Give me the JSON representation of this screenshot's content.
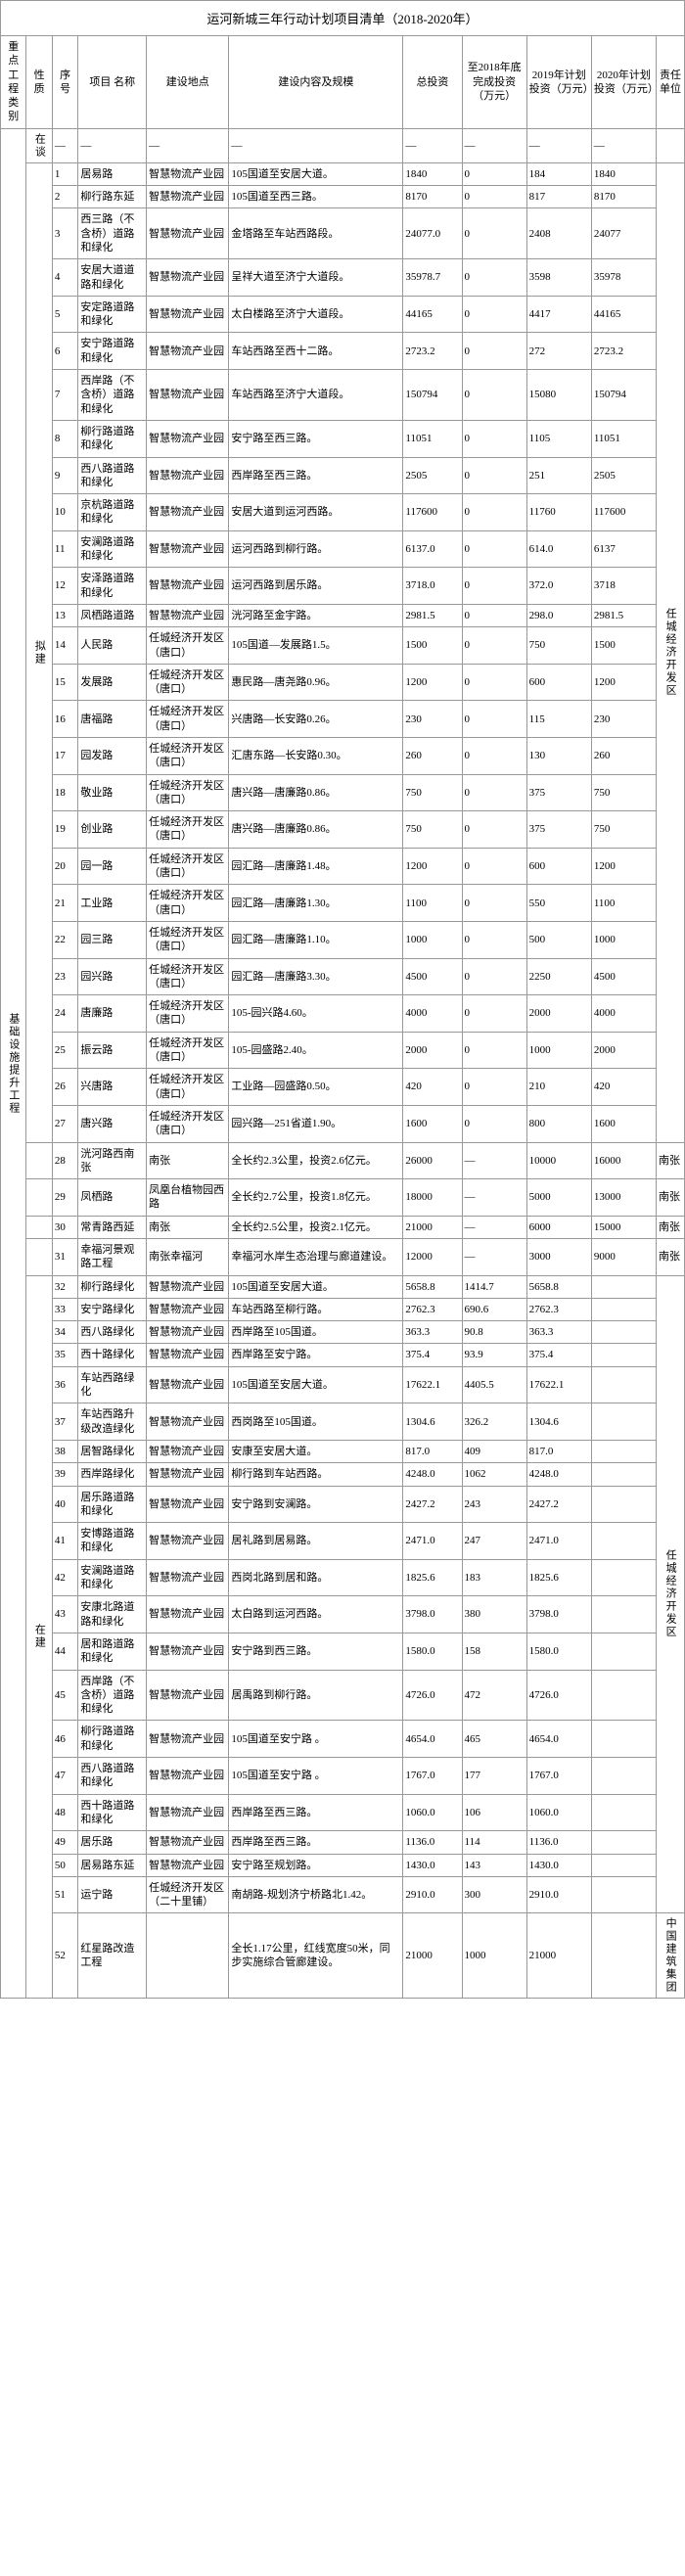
{
  "title": "运河新城三年行动计划项目清单（2018-2020年）",
  "headers": {
    "category": "重点工程类别",
    "nature": "性质",
    "seq": "序号",
    "name": "项目 名称",
    "location": "建设地点",
    "content": "建设内容及规模",
    "total_inv": "总投资",
    "inv_2018": "至2018年底完成投资（万元）",
    "inv_2019": "2019年计划投资（万元）",
    "inv_2020": "2020年计划投资（万元）",
    "unit": "责任单位"
  },
  "category_label": "基础设施提升工程",
  "nature_labels": {
    "zaitang": "在谈",
    "nijian": "拟建",
    "zaijian": "在建"
  },
  "unit_labels": {
    "rencheng": "任城经济开发区",
    "nanzhang": "南张",
    "zhongguo": "中国建筑集团"
  },
  "em": "—",
  "rows": [
    {
      "s": "1",
      "n": "居易路",
      "l": "智慧物流产业园",
      "c": "105国道至安居大道。",
      "t": "1840",
      "a": "0",
      "b": "184",
      "d": "1840"
    },
    {
      "s": "2",
      "n": "柳行路东延",
      "l": "智慧物流产业园",
      "c": "105国道至西三路。",
      "t": "8170",
      "a": "0",
      "b": "817",
      "d": "8170"
    },
    {
      "s": "3",
      "n": "西三路（不含桥）道路和绿化",
      "l": "智慧物流产业园",
      "c": "金塔路至车站西路段。",
      "t": "24077.0",
      "a": "0",
      "b": "2408",
      "d": "24077"
    },
    {
      "s": "4",
      "n": "安居大道道路和绿化",
      "l": "智慧物流产业园",
      "c": "呈祥大道至济宁大道段。",
      "t": "35978.7",
      "a": "0",
      "b": "3598",
      "d": "35978"
    },
    {
      "s": "5",
      "n": "安定路道路和绿化",
      "l": "智慧物流产业园",
      "c": "太白楼路至济宁大道段。",
      "t": "44165",
      "a": "0",
      "b": "4417",
      "d": "44165"
    },
    {
      "s": "6",
      "n": "安宁路道路和绿化",
      "l": "智慧物流产业园",
      "c": "车站西路至西十二路。",
      "t": "2723.2",
      "a": "0",
      "b": "272",
      "d": "2723.2"
    },
    {
      "s": "7",
      "n": "西岸路（不含桥）道路和绿化",
      "l": "智慧物流产业园",
      "c": "车站西路至济宁大道段。",
      "t": "150794",
      "a": "0",
      "b": "15080",
      "d": "150794"
    },
    {
      "s": "8",
      "n": "柳行路道路和绿化",
      "l": "智慧物流产业园",
      "c": "安宁路至西三路。",
      "t": "11051",
      "a": "0",
      "b": "1105",
      "d": "11051"
    },
    {
      "s": "9",
      "n": "西八路道路和绿化",
      "l": "智慧物流产业园",
      "c": "西岸路至西三路。",
      "t": "2505",
      "a": "0",
      "b": "251",
      "d": "2505"
    },
    {
      "s": "10",
      "n": "京杭路道路和绿化",
      "l": "智慧物流产业园",
      "c": "安居大道到运河西路。",
      "t": "117600",
      "a": "0",
      "b": "11760",
      "d": "117600"
    },
    {
      "s": "11",
      "n": "安澜路道路和绿化",
      "l": "智慧物流产业园",
      "c": "运河西路到柳行路。",
      "t": "6137.0",
      "a": "0",
      "b": "614.0",
      "d": "6137"
    },
    {
      "s": "12",
      "n": "安泽路道路和绿化",
      "l": "智慧物流产业园",
      "c": "运河西路到居乐路。",
      "t": "3718.0",
      "a": "0",
      "b": "372.0",
      "d": "3718"
    },
    {
      "s": "13",
      "n": "凤栖路道路",
      "l": "智慧物流产业园",
      "c": "洸河路至金宇路。",
      "t": "2981.5",
      "a": "0",
      "b": "298.0",
      "d": "2981.5"
    },
    {
      "s": "14",
      "n": "人民路",
      "l": "任城经济开发区（唐口）",
      "c": "105国道—发展路1.5。",
      "t": "1500",
      "a": "0",
      "b": "750",
      "d": "1500"
    },
    {
      "s": "15",
      "n": "发展路",
      "l": "任城经济开发区（唐口）",
      "c": "惠民路—唐尧路0.96。",
      "t": "1200",
      "a": "0",
      "b": "600",
      "d": "1200"
    },
    {
      "s": "16",
      "n": "唐福路",
      "l": "任城经济开发区（唐口）",
      "c": "兴唐路—长安路0.26。",
      "t": "230",
      "a": "0",
      "b": "115",
      "d": "230"
    },
    {
      "s": "17",
      "n": "园发路",
      "l": "任城经济开发区（唐口）",
      "c": "汇唐东路—长安路0.30。",
      "t": "260",
      "a": "0",
      "b": "130",
      "d": "260"
    },
    {
      "s": "18",
      "n": "敬业路",
      "l": "任城经济开发区（唐口）",
      "c": "唐兴路—唐廉路0.86。",
      "t": "750",
      "a": "0",
      "b": "375",
      "d": "750"
    },
    {
      "s": "19",
      "n": "创业路",
      "l": "任城经济开发区（唐口）",
      "c": "唐兴路—唐廉路0.86。",
      "t": "750",
      "a": "0",
      "b": "375",
      "d": "750"
    },
    {
      "s": "20",
      "n": "园一路",
      "l": "任城经济开发区（唐口）",
      "c": "园汇路—唐廉路1.48。",
      "t": "1200",
      "a": "0",
      "b": "600",
      "d": "1200"
    },
    {
      "s": "21",
      "n": "工业路",
      "l": "任城经济开发区（唐口）",
      "c": "园汇路—唐廉路1.30。",
      "t": "1100",
      "a": "0",
      "b": "550",
      "d": "1100"
    },
    {
      "s": "22",
      "n": "园三路",
      "l": "任城经济开发区（唐口）",
      "c": "园汇路—唐廉路1.10。",
      "t": "1000",
      "a": "0",
      "b": "500",
      "d": "1000"
    },
    {
      "s": "23",
      "n": "园兴路",
      "l": "任城经济开发区（唐口）",
      "c": "园汇路—唐廉路3.30。",
      "t": "4500",
      "a": "0",
      "b": "2250",
      "d": "4500"
    },
    {
      "s": "24",
      "n": "唐廉路",
      "l": "任城经济开发区（唐口）",
      "c": "105-园兴路4.60。",
      "t": "4000",
      "a": "0",
      "b": "2000",
      "d": "4000"
    },
    {
      "s": "25",
      "n": "振云路",
      "l": "任城经济开发区（唐口）",
      "c": "105-园盛路2.40。",
      "t": "2000",
      "a": "0",
      "b": "1000",
      "d": "2000"
    },
    {
      "s": "26",
      "n": "兴唐路",
      "l": "任城经济开发区（唐口）",
      "c": "工业路—园盛路0.50。",
      "t": "420",
      "a": "0",
      "b": "210",
      "d": "420"
    },
    {
      "s": "27",
      "n": "唐兴路",
      "l": "任城经济开发区（唐口）",
      "c": "园兴路—251省道1.90。",
      "t": "1600",
      "a": "0",
      "b": "800",
      "d": "1600"
    },
    {
      "s": "28",
      "n": "洸河路西南张",
      "l": "南张",
      "c": "全长约2.3公里，投资2.6亿元。",
      "t": "26000",
      "a": "—",
      "b": "10000",
      "d": "16000",
      "u": "南张"
    },
    {
      "s": "29",
      "n": "凤栖路",
      "l": "凤凰台植物园西路",
      "c": "全长约2.7公里，投资1.8亿元。",
      "t": "18000",
      "a": "—",
      "b": "5000",
      "d": "13000",
      "u": "南张"
    },
    {
      "s": "30",
      "n": "常青路西延",
      "l": "南张",
      "c": "全长约2.5公里，投资2.1亿元。",
      "t": "21000",
      "a": "—",
      "b": "6000",
      "d": "15000",
      "u": "南张"
    },
    {
      "s": "31",
      "n": "幸福河景观路工程",
      "l": "南张幸福河",
      "c": "幸福河水岸生态治理与廊道建设。",
      "t": "12000",
      "a": "—",
      "b": "3000",
      "d": "9000",
      "u": "南张"
    },
    {
      "s": "32",
      "n": "柳行路绿化",
      "l": "智慧物流产业园",
      "c": "105国道至安居大道。",
      "t": "5658.8",
      "a": "1414.7",
      "b": "5658.8",
      "d": ""
    },
    {
      "s": "33",
      "n": "安宁路绿化",
      "l": "智慧物流产业园",
      "c": "车站西路至柳行路。",
      "t": "2762.3",
      "a": "690.6",
      "b": "2762.3",
      "d": ""
    },
    {
      "s": "34",
      "n": "西八路绿化",
      "l": "智慧物流产业园",
      "c": "西岸路至105国道。",
      "t": "363.3",
      "a": "90.8",
      "b": "363.3",
      "d": ""
    },
    {
      "s": "35",
      "n": "西十路绿化",
      "l": "智慧物流产业园",
      "c": "西岸路至安宁路。",
      "t": "375.4",
      "a": "93.9",
      "b": "375.4",
      "d": ""
    },
    {
      "s": "36",
      "n": "车站西路绿化",
      "l": "智慧物流产业园",
      "c": "105国道至安居大道。",
      "t": "17622.1",
      "a": "4405.5",
      "b": "17622.1",
      "d": ""
    },
    {
      "s": "37",
      "n": "车站西路升级改造绿化",
      "l": "智慧物流产业园",
      "c": "西岗路至105国道。",
      "t": "1304.6",
      "a": "326.2",
      "b": "1304.6",
      "d": ""
    },
    {
      "s": "38",
      "n": "居智路绿化",
      "l": "智慧物流产业园",
      "c": "安康至安居大道。",
      "t": "817.0",
      "a": "409",
      "b": "817.0",
      "d": ""
    },
    {
      "s": "39",
      "n": "西岸路绿化",
      "l": "智慧物流产业园",
      "c": "柳行路到车站西路。",
      "t": "4248.0",
      "a": "1062",
      "b": "4248.0",
      "d": ""
    },
    {
      "s": "40",
      "n": "居乐路道路和绿化",
      "l": "智慧物流产业园",
      "c": "安宁路到安澜路。",
      "t": "2427.2",
      "a": "243",
      "b": "2427.2",
      "d": ""
    },
    {
      "s": "41",
      "n": "安博路道路和绿化",
      "l": "智慧物流产业园",
      "c": "居礼路到居易路。",
      "t": "2471.0",
      "a": "247",
      "b": "2471.0",
      "d": ""
    },
    {
      "s": "42",
      "n": "安澜路道路和绿化",
      "l": "智慧物流产业园",
      "c": "西岗北路到居和路。",
      "t": "1825.6",
      "a": "183",
      "b": "1825.6",
      "d": ""
    },
    {
      "s": "43",
      "n": "安康北路道路和绿化",
      "l": "智慧物流产业园",
      "c": "太白路到运河西路。",
      "t": "3798.0",
      "a": "380",
      "b": "3798.0",
      "d": ""
    },
    {
      "s": "44",
      "n": "居和路道路和绿化",
      "l": "智慧物流产业园",
      "c": "安宁路到西三路。",
      "t": "1580.0",
      "a": "158",
      "b": "1580.0",
      "d": ""
    },
    {
      "s": "45",
      "n": "西岸路（不含桥）道路和绿化",
      "l": "智慧物流产业园",
      "c": "居禹路到柳行路。",
      "t": "4726.0",
      "a": "472",
      "b": "4726.0",
      "d": ""
    },
    {
      "s": "46",
      "n": "柳行路道路和绿化",
      "l": "智慧物流产业园",
      "c": "105国道至安宁路 。",
      "t": "4654.0",
      "a": "465",
      "b": "4654.0",
      "d": ""
    },
    {
      "s": "47",
      "n": "西八路道路和绿化",
      "l": "智慧物流产业园",
      "c": "105国道至安宁路 。",
      "t": "1767.0",
      "a": "177",
      "b": "1767.0",
      "d": ""
    },
    {
      "s": "48",
      "n": "西十路道路和绿化",
      "l": "智慧物流产业园",
      "c": "西岸路至西三路。",
      "t": "1060.0",
      "a": "106",
      "b": "1060.0",
      "d": ""
    },
    {
      "s": "49",
      "n": "居乐路",
      "l": "智慧物流产业园",
      "c": "西岸路至西三路。",
      "t": "1136.0",
      "a": "114",
      "b": "1136.0",
      "d": ""
    },
    {
      "s": "50",
      "n": "居易路东延",
      "l": "智慧物流产业园",
      "c": "安宁路至规划路。",
      "t": "1430.0",
      "a": "143",
      "b": "1430.0",
      "d": ""
    },
    {
      "s": "51",
      "n": "运宁路",
      "l": "任城经济开发区（二十里铺）",
      "c": "南胡路-规划济宁桥路北1.42。",
      "t": "2910.0",
      "a": "300",
      "b": "2910.0",
      "d": ""
    },
    {
      "s": "52",
      "n": "红星路改造工程",
      "l": "",
      "c": "全长1.17公里，红线宽度50米，同步实施综合管廊建设。",
      "t": "21000",
      "a": "1000",
      "b": "21000",
      "d": ""
    }
  ]
}
